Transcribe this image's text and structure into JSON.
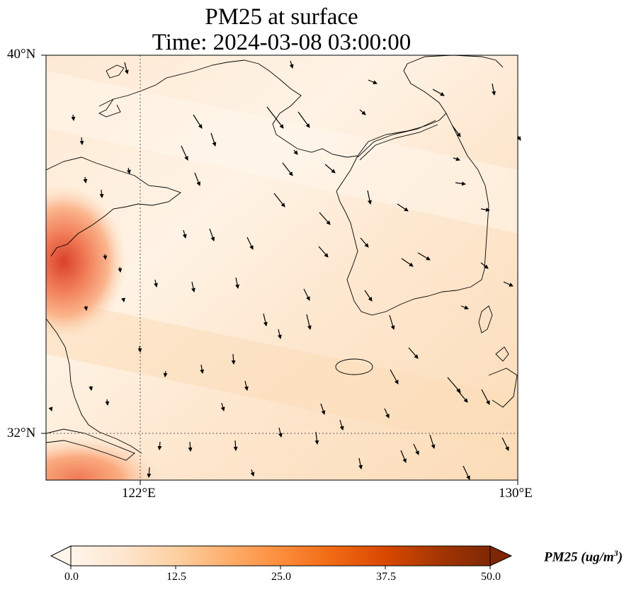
{
  "title_line1": "PM25 at surface",
  "title_line2": "Time: 2024-03-08 03:00:00",
  "lat_labels": [
    "40°N",
    "32°N"
  ],
  "lon_labels": [
    "122°E",
    "130°E"
  ],
  "colorbar": {
    "ticks": [
      "0.0",
      "12.5",
      "25.0",
      "37.5",
      "50.0"
    ],
    "label_main": "PM25 (ug/m",
    "label_sup": "3",
    "label_end": ")",
    "colormap": [
      "#fff5eb",
      "#fee6ce",
      "#fdd0a2",
      "#fdae6b",
      "#fd8d3c",
      "#f16913",
      "#d94801",
      "#a63603",
      "#7f2704"
    ]
  },
  "map_extent": {
    "lon_min": 120,
    "lon_max": 130,
    "lat_min": 31,
    "lat_max": 40
  },
  "colors": {
    "land_outline": "#000000",
    "gridline": "#555555",
    "arrow": "#000000"
  }
}
